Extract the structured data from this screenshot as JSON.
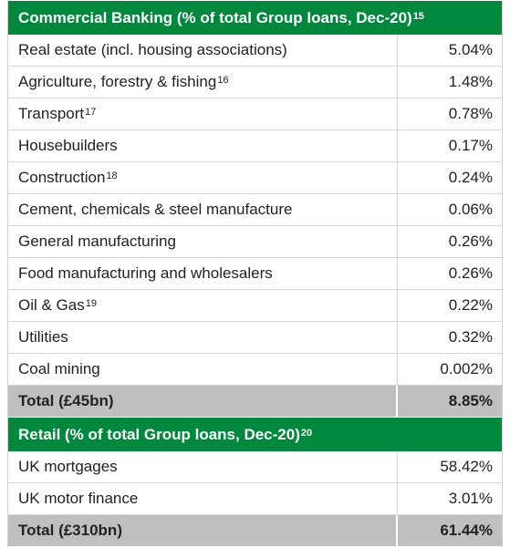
{
  "sections": [
    {
      "title": "Commercial Banking (% of total Group loans, Dec-20)",
      "note": "15",
      "rows": [
        {
          "label": "Real estate (incl. housing associations)",
          "value": "5.04%"
        },
        {
          "label": "Agriculture, forestry & fishing",
          "note": "16",
          "value": "1.48%"
        },
        {
          "label": "Transport",
          "note": "17",
          "value": "0.78%"
        },
        {
          "label": "Housebuilders",
          "value": "0.17%"
        },
        {
          "label": "Construction",
          "note": "18",
          "value": "0.24%"
        },
        {
          "label": "Cement, chemicals & steel manufacture",
          "value": "0.06%"
        },
        {
          "label": "General manufacturing",
          "value": "0.26%"
        },
        {
          "label": "Food manufacturing and wholesalers",
          "value": "0.26%"
        },
        {
          "label": "Oil & Gas",
          "note": "19",
          "value": "0.22%"
        },
        {
          "label": "Utilities",
          "value": "0.32%"
        },
        {
          "label": "Coal mining",
          "value": "0.002%"
        }
      ],
      "total": {
        "label": "Total (£45bn)",
        "value": "8.85%"
      }
    },
    {
      "title": "Retail (% of total Group loans, Dec-20)",
      "note": "20",
      "rows": [
        {
          "label": "UK mortgages",
          "value": "58.42%"
        },
        {
          "label": "UK motor finance",
          "value": "3.01%"
        }
      ],
      "total": {
        "label": "Total (£310bn)",
        "value": "61.44%"
      }
    }
  ]
}
